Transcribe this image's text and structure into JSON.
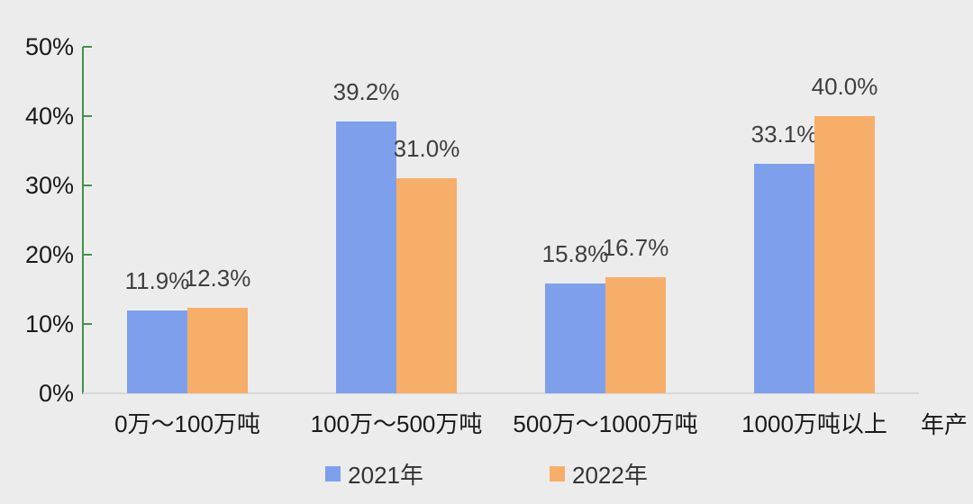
{
  "chart_data": {
    "type": "bar",
    "title": "",
    "categories": [
      "0万～100万吨",
      "100万～500万吨",
      "500万～1000万吨",
      "1000万吨以上"
    ],
    "series": [
      {
        "name": "2021年",
        "color": "#7EA0EC",
        "values": [
          11.9,
          39.2,
          15.8,
          33.1
        ]
      },
      {
        "name": "2022年",
        "color": "#F7AE68",
        "values": [
          12.3,
          31.0,
          16.7,
          40.0
        ]
      }
    ],
    "value_labels": [
      [
        "11.9%",
        "39.2%",
        "15.8%",
        "33.1%"
      ],
      [
        "12.3%",
        "31.0%",
        "16.7%",
        "40.0%"
      ]
    ],
    "xlabel": "年产",
    "ylabel": "",
    "ylim": [
      0,
      50
    ],
    "yticks": [
      0,
      10,
      20,
      30,
      40,
      50
    ],
    "ytick_labels": [
      "0%",
      "10%",
      "20%",
      "30%",
      "40%",
      "50%"
    ],
    "grid": false,
    "legend_position": "bottom"
  },
  "style": {
    "background": "#ECECEC",
    "axis_line_color": "#43914D",
    "baseline_color": "#D9D9D9",
    "value_label_color": "#3F3F3F",
    "tick_label_color": "#1A1A1A",
    "category_label_color": "#1A1A1A",
    "legend_text_color": "#333333"
  }
}
